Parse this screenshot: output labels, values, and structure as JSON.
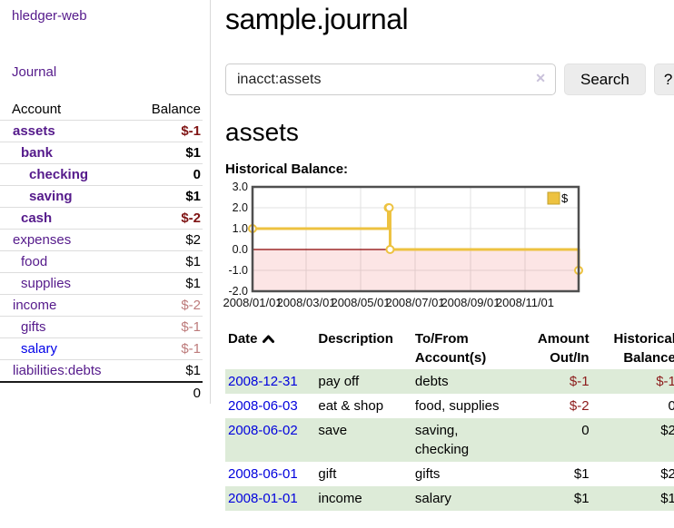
{
  "app": {
    "brand": "hledger-web"
  },
  "sidebar": {
    "nav_journal": "Journal",
    "headers": {
      "account": "Account",
      "balance": "Balance"
    },
    "rows": [
      {
        "account": "assets",
        "balance": "$-1",
        "level": 0,
        "match": true,
        "link": "visited",
        "sign": "neg-strong"
      },
      {
        "account": "bank",
        "balance": "$1",
        "level": 1,
        "match": true,
        "link": "visited",
        "sign": "pos"
      },
      {
        "account": "checking",
        "balance": "0",
        "level": 2,
        "match": true,
        "link": "visited",
        "sign": "pos"
      },
      {
        "account": "saving",
        "balance": "$1",
        "level": 2,
        "match": true,
        "link": "visited",
        "sign": "pos"
      },
      {
        "account": "cash",
        "balance": "$-2",
        "level": 1,
        "match": true,
        "link": "visited",
        "sign": "neg-strong"
      },
      {
        "account": "expenses",
        "balance": "$2",
        "level": 0,
        "match": false,
        "link": "visited",
        "sign": "pos"
      },
      {
        "account": "food",
        "balance": "$1",
        "level": 1,
        "match": false,
        "link": "visited",
        "sign": "pos"
      },
      {
        "account": "supplies",
        "balance": "$1",
        "level": 1,
        "match": false,
        "link": "visited",
        "sign": "pos"
      },
      {
        "account": "income",
        "balance": "$-2",
        "level": 0,
        "match": false,
        "link": "visited",
        "sign": "neg-soft"
      },
      {
        "account": "gifts",
        "balance": "$-1",
        "level": 1,
        "match": false,
        "link": "visited",
        "sign": "neg-soft"
      },
      {
        "account": "salary",
        "balance": "$-1",
        "level": 1,
        "match": false,
        "link": "new",
        "sign": "neg-soft"
      },
      {
        "account": "liabilities:debts",
        "balance": "$1",
        "level": 0,
        "match": false,
        "link": "visited",
        "sign": "pos"
      }
    ],
    "total": "0"
  },
  "main": {
    "title": "sample.journal",
    "search": {
      "value": "inacct:assets",
      "clear_icon": "✕",
      "search_button": "Search",
      "help_button": "?"
    },
    "account_heading": "assets",
    "chart_label": "Historical Balance:"
  },
  "chart_data": {
    "type": "line",
    "step": true,
    "title": "Historical Balance",
    "x_start": "2008-01-01",
    "x_end": "2008-12-31",
    "xticks": [
      "2008/01/01",
      "2008/03/01",
      "2008/05/01",
      "2008/07/01",
      "2008/09/01",
      "2008/11/01"
    ],
    "yticks": [
      3.0,
      2.0,
      1.0,
      0.0,
      -1.0,
      -2.0
    ],
    "ylim": [
      -2,
      3
    ],
    "grid": true,
    "legend_position": "top-right",
    "series": [
      {
        "name": "$",
        "color": "#edc240",
        "points": [
          [
            "2008-01-01",
            1
          ],
          [
            "2008-06-01",
            2
          ],
          [
            "2008-06-02",
            2
          ],
          [
            "2008-06-03",
            0
          ],
          [
            "2008-12-31",
            -1
          ]
        ]
      }
    ],
    "negative_region_color": "rgba(229,40,40,0.12)",
    "zero_line_color": "#8b0000"
  },
  "register": {
    "headers": {
      "date": "Date",
      "description": "Description",
      "accounts": "To/From Account(s)",
      "amount": "Amount Out/In",
      "balance": "Historical Balance"
    },
    "rows": [
      {
        "date": "2008-12-31",
        "description": "pay off",
        "accounts": "debts",
        "amount": "$-1",
        "amount_sign": "neg",
        "balance": "$-1",
        "balance_sign": "neg"
      },
      {
        "date": "2008-06-03",
        "description": "eat & shop",
        "accounts": "food, supplies",
        "amount": "$-2",
        "amount_sign": "neg",
        "balance": "0",
        "balance_sign": "pos"
      },
      {
        "date": "2008-06-02",
        "description": "save",
        "accounts": "saving, checking",
        "amount": "0",
        "amount_sign": "pos",
        "balance": "$2",
        "balance_sign": "pos"
      },
      {
        "date": "2008-06-01",
        "description": "gift",
        "accounts": "gifts",
        "amount": "$1",
        "amount_sign": "pos",
        "balance": "$2",
        "balance_sign": "pos"
      },
      {
        "date": "2008-01-01",
        "description": "income",
        "accounts": "salary",
        "amount": "$1",
        "amount_sign": "pos",
        "balance": "$1",
        "balance_sign": "pos"
      }
    ]
  }
}
